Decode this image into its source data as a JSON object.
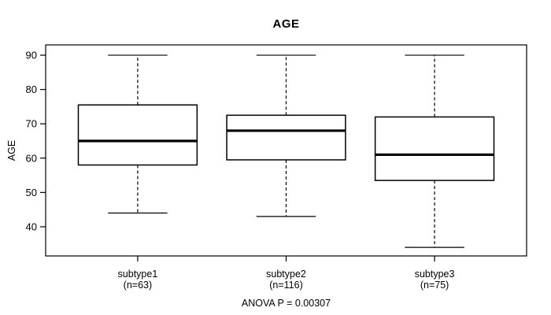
{
  "title": "AGE",
  "y_axis_label": "AGE",
  "caption": "ANOVA P = 0.00307",
  "chart_data": {
    "type": "box",
    "title": "AGE",
    "ylabel": "AGE",
    "xlabel": "",
    "caption": "ANOVA P = 0.00307",
    "grid": false,
    "legend": "none",
    "yticks": [
      40,
      50,
      60,
      70,
      80,
      90
    ],
    "ylim": [
      31.5,
      93
    ],
    "categories": [
      "subtype1",
      "subtype2",
      "subtype3"
    ],
    "category_sublabels": [
      "(n=63)",
      "(n=116)",
      "(n=75)"
    ],
    "boxes": [
      {
        "label": "subtype1",
        "n": 63,
        "whisker_low": 44,
        "q1": 58,
        "median": 65,
        "q3": 75.5,
        "whisker_high": 90
      },
      {
        "label": "subtype2",
        "n": 116,
        "whisker_low": 43,
        "q1": 59.5,
        "median": 68,
        "q3": 72.5,
        "whisker_high": 90
      },
      {
        "label": "subtype3",
        "n": 75,
        "whisker_low": 34,
        "q1": 53.5,
        "median": 61,
        "q3": 72,
        "whisker_high": 90
      }
    ],
    "colors": {
      "stroke": "#000000",
      "box_fill": "#ffffff",
      "median": "#000000",
      "background": "#ffffff"
    }
  }
}
